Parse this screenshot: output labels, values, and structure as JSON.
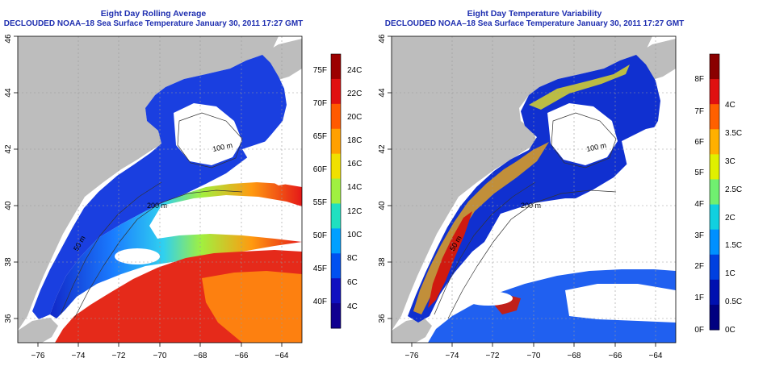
{
  "panels": [
    {
      "id": "rolling-average",
      "title_line1": "Eight Day Rolling Average",
      "title_line2": "DECLOUDED NOAA–18 Sea Surface Temperature January 30, 2011 17:27 GMT",
      "lon_ticks": [
        "−76",
        "−74",
        "−72",
        "−70",
        "−68",
        "−66",
        "−64"
      ],
      "lat_ticks": [
        "36",
        "38",
        "40",
        "42",
        "44",
        "46"
      ],
      "contours": [
        "100 m",
        "200 m",
        "200 m",
        "50 m"
      ],
      "colorbar": {
        "left_labels": [
          "75F",
          "70F",
          "65F",
          "60F",
          "55F",
          "50F",
          "45F",
          "40F"
        ],
        "right_labels": [
          "24C",
          "22C",
          "20C",
          "18C",
          "16C",
          "14C",
          "12C",
          "10C",
          "8C",
          "6C",
          "4C"
        ],
        "colors": [
          "#9c0000",
          "#e01010",
          "#ff5a00",
          "#ffa000",
          "#f0e000",
          "#a0f040",
          "#20e0c0",
          "#00a0ff",
          "#0050f0",
          "#1010c0",
          "#100090"
        ]
      }
    },
    {
      "id": "temperature-variability",
      "title_line1": "Eight Day Temperature Variability",
      "title_line2": "DECLOUDED NOAA–18 Sea Surface Temperature January 30, 2011 17:27 GMT",
      "lon_ticks": [
        "−76",
        "−74",
        "−72",
        "−70",
        "−68",
        "−66",
        "−64"
      ],
      "lat_ticks": [
        "36",
        "38",
        "40",
        "42",
        "44",
        "46"
      ],
      "contours": [
        "100 m",
        "200 m",
        "200 m",
        "50 m"
      ],
      "colorbar": {
        "left_labels": [
          "8F",
          "7F",
          "6F",
          "5F",
          "4F",
          "3F",
          "2F",
          "1F",
          "0F"
        ],
        "right_labels": [
          "4C",
          "3.5C",
          "3C",
          "2.5C",
          "2C",
          "1.5C",
          "1C",
          "0.5C",
          "0C"
        ],
        "colors": [
          "#8a0000",
          "#e01010",
          "#ff6000",
          "#ffb000",
          "#e0f000",
          "#70f070",
          "#10d0e0",
          "#0090ff",
          "#0040e0",
          "#0010b0",
          "#000080"
        ]
      }
    }
  ],
  "colors": {
    "land": "#bdbdbd",
    "no_data": "#ffffff",
    "title": "#1f2fb0",
    "grid": "#9a9a9a"
  }
}
